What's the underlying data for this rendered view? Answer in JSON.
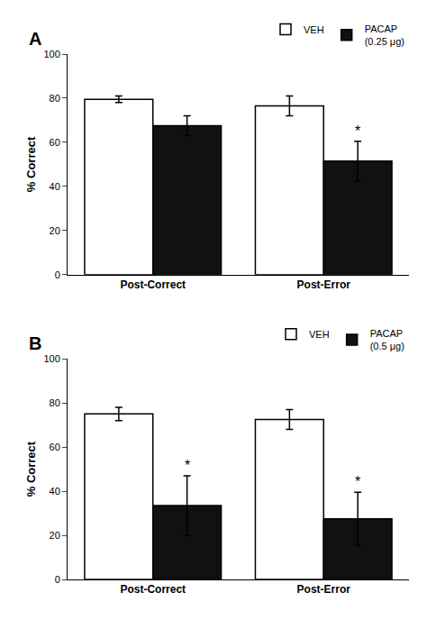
{
  "chart_data": [
    {
      "type": "bar",
      "title": "A",
      "categories": [
        "Post-Correct",
        "Post-Error"
      ],
      "series": [
        {
          "name": "VEH",
          "color": "#ffffff",
          "values": [
            79.5,
            76.5
          ],
          "errors": [
            1.5,
            4.5
          ]
        },
        {
          "name": "PACAP\n(0.25 μg)",
          "color": "#111111",
          "values": [
            67.5,
            51.5
          ],
          "errors": [
            4.5,
            9.0
          ]
        }
      ],
      "annotations": [
        {
          "category": "Post-Error",
          "series": "PACAP\n(0.25 μg)",
          "text": "*"
        }
      ],
      "ylabel": "% Correct",
      "ylim": [
        0,
        100
      ],
      "yticks": [
        0,
        20,
        40,
        60,
        80,
        100
      ],
      "legend": "upper right",
      "grid": false
    },
    {
      "type": "bar",
      "title": "B",
      "categories": [
        "Post-Correct",
        "Post-Error"
      ],
      "series": [
        {
          "name": "VEH",
          "color": "#ffffff",
          "values": [
            75.0,
            72.5
          ],
          "errors": [
            3.0,
            4.5
          ]
        },
        {
          "name": "PACAP\n(0.5 μg)",
          "color": "#111111",
          "values": [
            33.5,
            27.5
          ],
          "errors": [
            13.5,
            12.0
          ]
        }
      ],
      "annotations": [
        {
          "category": "Post-Correct",
          "series": "PACAP\n(0.5 μg)",
          "text": "*"
        },
        {
          "category": "Post-Error",
          "series": "PACAP\n(0.5 μg)",
          "text": "*"
        }
      ],
      "ylabel": "% Correct",
      "ylim": [
        0,
        100
      ],
      "yticks": [
        0,
        20,
        40,
        60,
        80,
        100
      ],
      "legend": "upper right",
      "grid": false
    }
  ]
}
